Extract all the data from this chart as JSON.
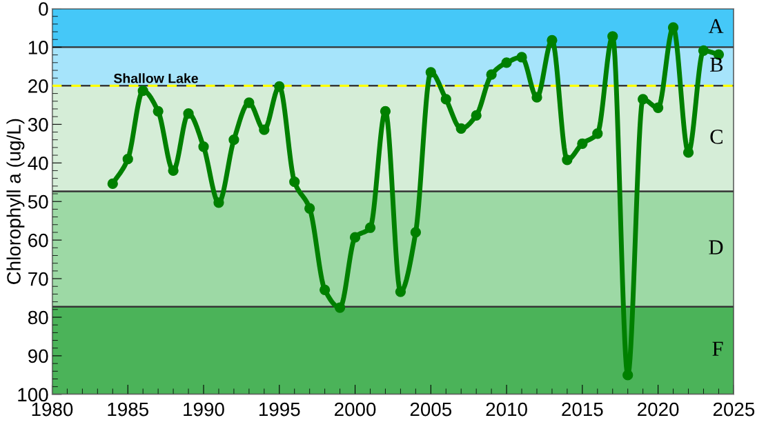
{
  "chart_data": {
    "type": "line",
    "ylabel": "Chlorophyll a (ug/L)",
    "x": [
      1984,
      1985,
      1986,
      1987,
      1988,
      1989,
      1990,
      1991,
      1992,
      1993,
      1994,
      1995,
      1996,
      1997,
      1998,
      1999,
      2000,
      2001,
      2002,
      2003,
      2004,
      2005,
      2006,
      2007,
      2008,
      2009,
      2010,
      2011,
      2012,
      2013,
      2014,
      2015,
      2016,
      2017,
      2018,
      2019,
      2020,
      2021,
      2022,
      2023,
      2024
    ],
    "series": [
      {
        "color": "#008000",
        "values": [
          45.4,
          39.0,
          21.3,
          26.6,
          42.0,
          27.2,
          35.8,
          50.3,
          34.0,
          24.4,
          31.4,
          20.2,
          44.9,
          51.8,
          72.9,
          77.5,
          59.3,
          56.8,
          26.6,
          73.4,
          58.0,
          16.5,
          23.5,
          31.1,
          27.7,
          17.1,
          14.0,
          12.6,
          23.0,
          8.2,
          39.2,
          35.0,
          32.4,
          7.2,
          95.0,
          23.5,
          25.7,
          4.9,
          37.3,
          10.9,
          11.9
        ]
      }
    ],
    "xlim": [
      1980,
      2025
    ],
    "xticks": [
      1980,
      1985,
      1990,
      1995,
      2000,
      2005,
      2010,
      2015,
      2020,
      2025
    ],
    "ylim": [
      100,
      0
    ],
    "yticks": [
      0,
      10,
      20,
      30,
      40,
      50,
      60,
      70,
      80,
      90,
      100
    ],
    "bands": [
      {
        "axis": "y",
        "from": 0,
        "to": 10,
        "label": "A",
        "color": "#45c8f8"
      },
      {
        "axis": "y",
        "from": 10,
        "to": 20,
        "label": "B",
        "color": "#a6e4fb"
      },
      {
        "axis": "y",
        "from": 20,
        "to": 47.4,
        "label": "C",
        "color": "#d5edd7"
      },
      {
        "axis": "y",
        "from": 47.4,
        "to": 77.3,
        "label": "D",
        "color": "#9dd9a5"
      },
      {
        "axis": "y",
        "from": 77.3,
        "to": 100,
        "label": "F",
        "color": "#4bb359"
      }
    ],
    "ref_lines": [
      {
        "axis": "y",
        "value": 20,
        "label": "Shallow Lake",
        "color": "#ffff00",
        "line_style": "dashed"
      }
    ],
    "marker": "circle",
    "line_style": "solid",
    "grid": false,
    "legend": false
  }
}
